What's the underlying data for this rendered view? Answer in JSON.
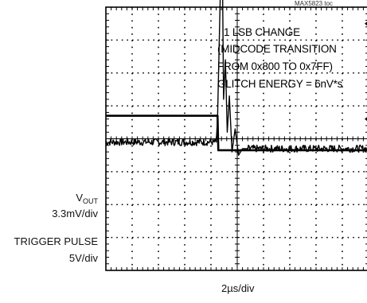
{
  "figure_tag": "MAX5823 toc",
  "annotation": {
    "lines": [
      "1 LSB CHANGE",
      "(MIDCODE TRANSITION",
      "FROM 0x800 TO 0x7FF)",
      "GLITCH ENERGY = 6nV*s"
    ]
  },
  "channels": {
    "vout": {
      "name_main": "V",
      "name_sub": "OUT",
      "scale": "3.3mV/div"
    },
    "trigger": {
      "name": "TRIGGER PULSE",
      "scale": "5V/div"
    }
  },
  "chart_data": {
    "type": "line",
    "title": "",
    "xlabel": "2µs/div",
    "ylabel": "",
    "grid": true,
    "x_divisions": 10,
    "y_divisions": 8,
    "series": [
      {
        "x_div": [
          0,
          4.2,
          4.25,
          4.35,
          4.42,
          4.48,
          4.55,
          4.62,
          4.7,
          4.8,
          4.92,
          5.05,
          5.2,
          5.4,
          10
        ],
        "y_div": [
          -0.1,
          -0.1,
          0.6,
          4.2,
          6.5,
          1.2,
          2.4,
          0.2,
          1.3,
          -0.4,
          0.3,
          -0.5,
          -0.3,
          -0.3,
          -0.3
        ]
      },
      {
        "x_div": [
          0,
          4.25,
          4.28,
          10
        ],
        "y_div": [
          0.7,
          0.7,
          -0.35,
          -0.35
        ]
      }
    ]
  }
}
